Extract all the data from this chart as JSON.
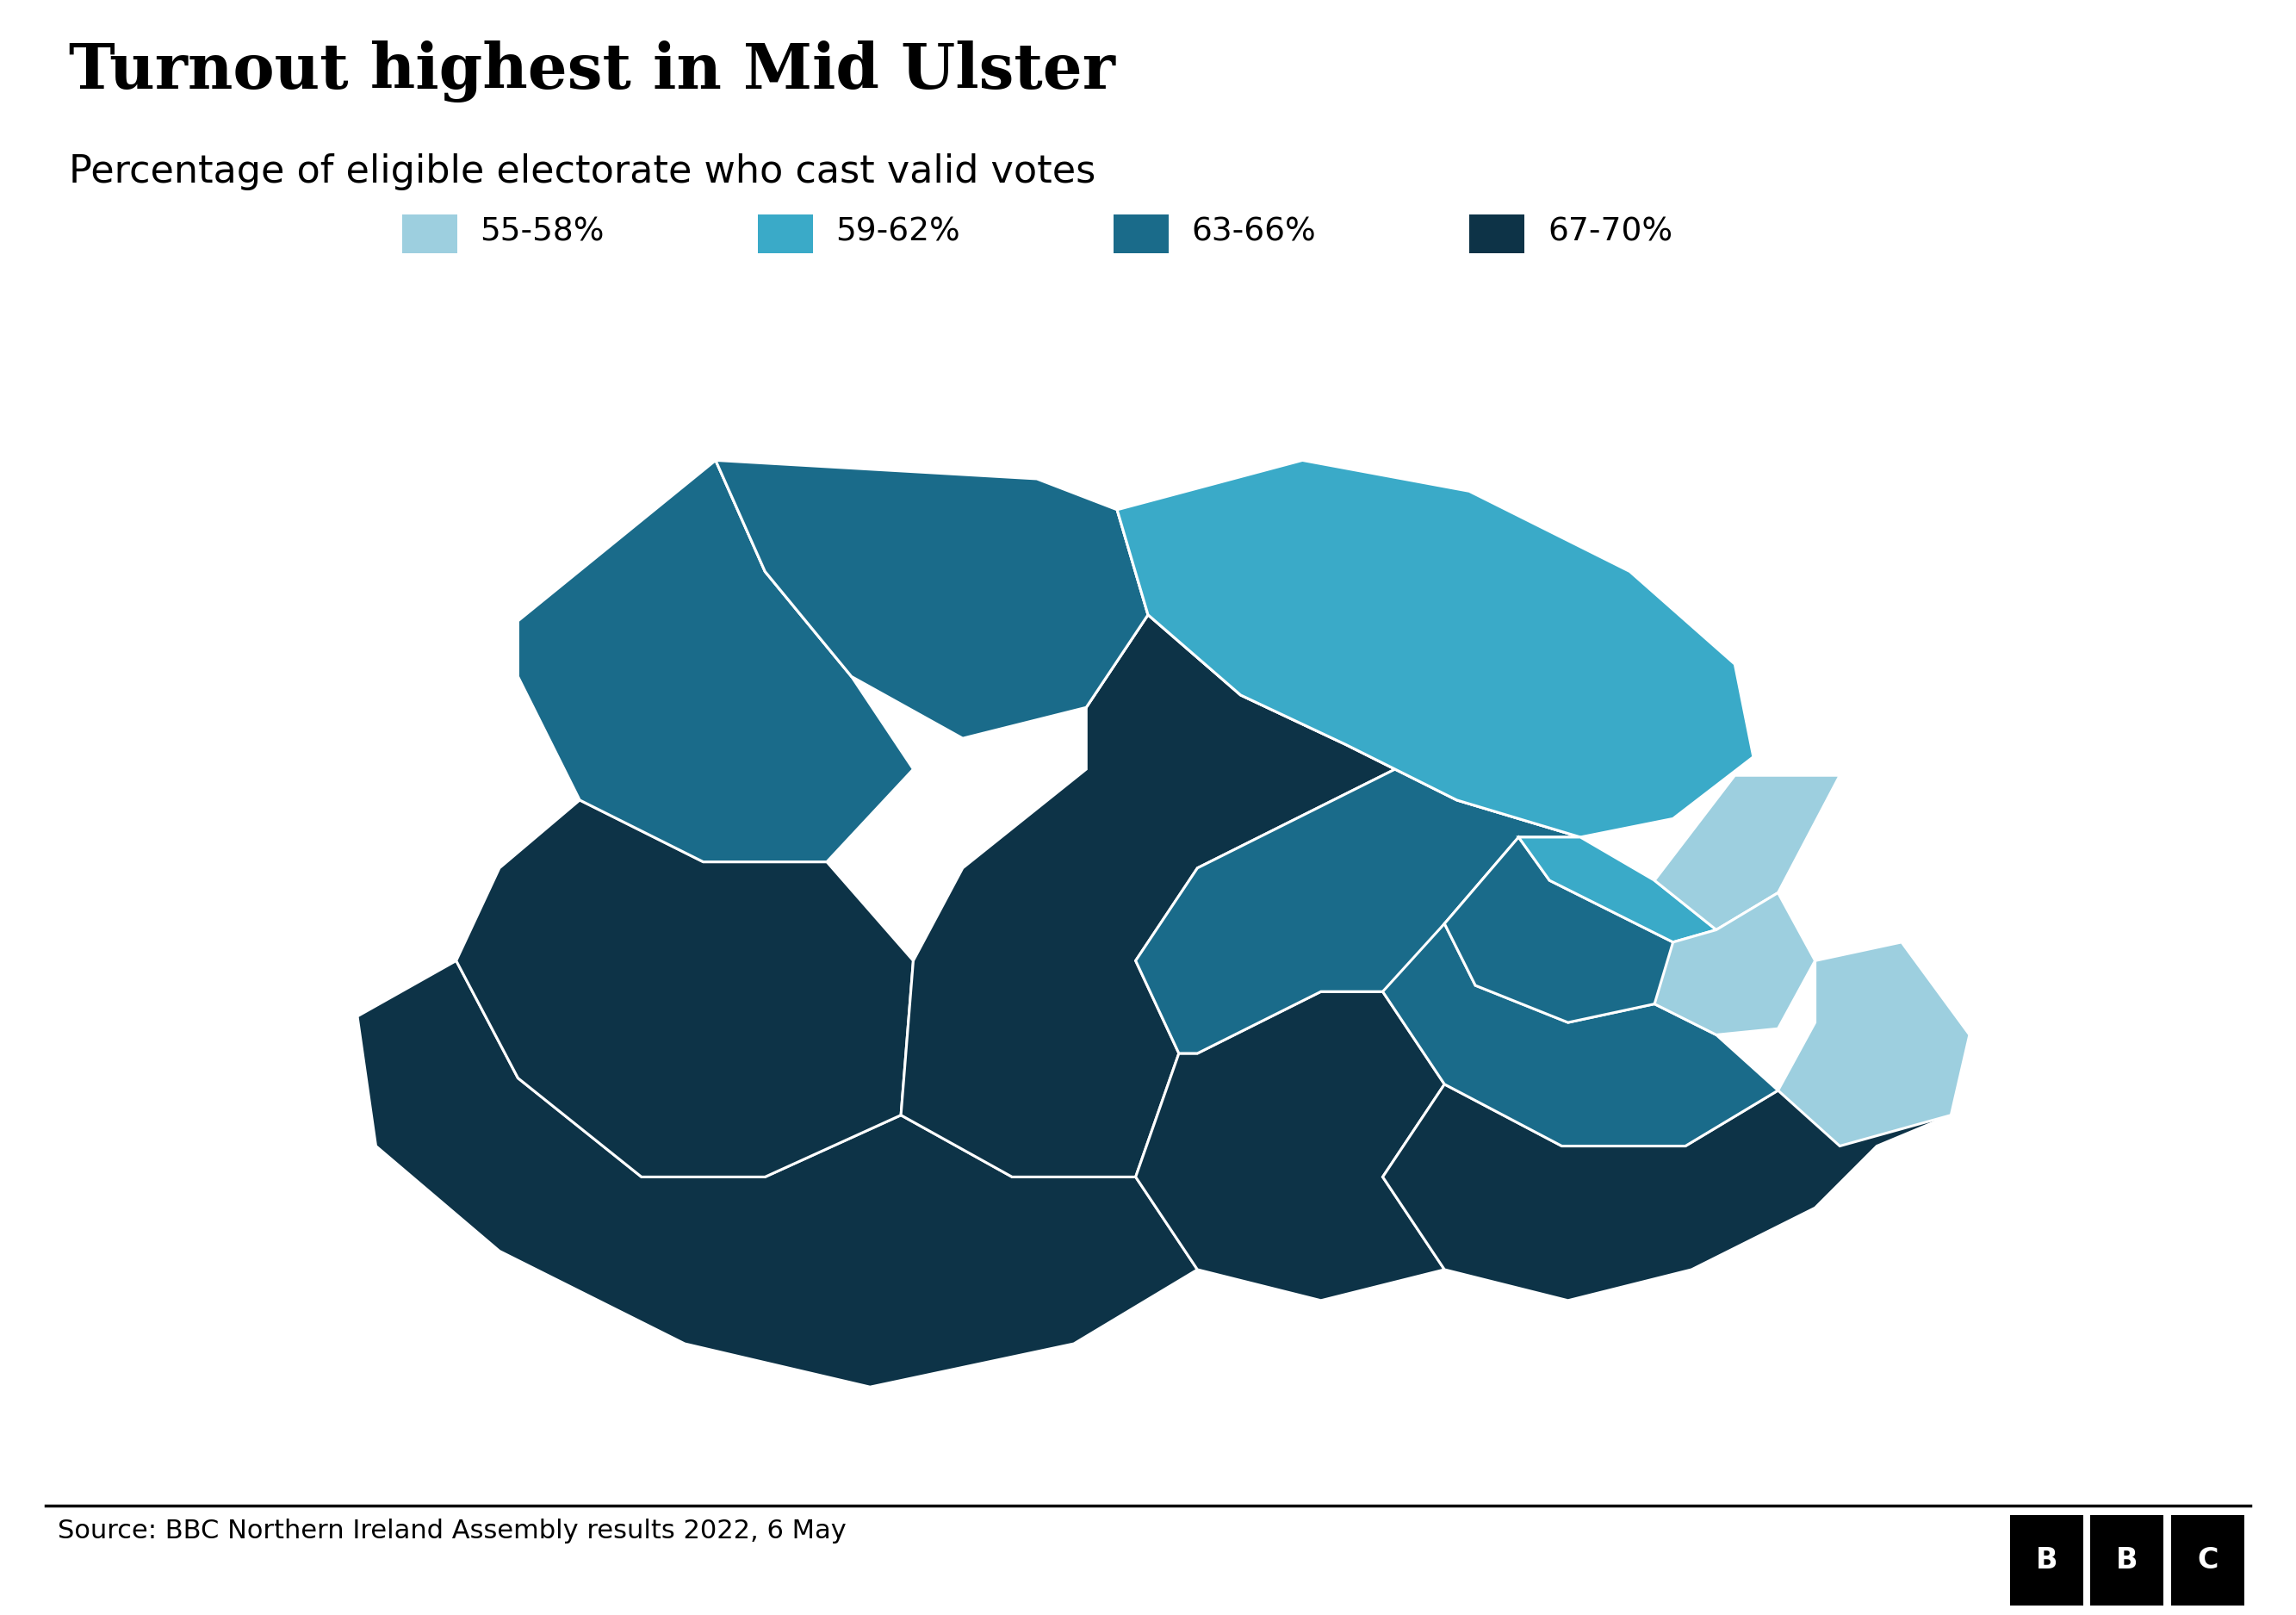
{
  "title": "Turnout highest in Mid Ulster",
  "subtitle": "Percentage of eligible electorate who cast valid votes",
  "source": "Source: BBC Northern Ireland Assembly results 2022, 6 May",
  "legend_items": [
    {
      "label": "55-58%",
      "color": "#9dcfdf"
    },
    {
      "label": "59-62%",
      "color": "#3aaac8"
    },
    {
      "label": "63-66%",
      "color": "#1a6b8a"
    },
    {
      "label": "67-70%",
      "color": "#0d3347"
    }
  ],
  "color_map": {
    "North Antrim": "#3aaac8",
    "East Antrim": "#3aaac8",
    "East Londonderry": "#1a6b8a",
    "Foyle": "#1a6b8a",
    "North Belfast": "#3aaac8",
    "East Belfast": "#9dcfdf",
    "West Belfast": "#1a6b8a",
    "South Belfast": "#9dcfdf",
    "Lagan Valley": "#1a6b8a",
    "Strangford": "#9dcfdf",
    "North Down": "#3aaac8",
    "South Down": "#0d3347",
    "Newry and Armagh": "#0d3347",
    "Upper Bann": "#1a6b8a",
    "Mid Ulster": "#0d3347",
    "West Tyrone": "#0d3347",
    "Fermanagh and South Tyrone": "#0d3347"
  },
  "background_color": "#ffffff",
  "title_fontsize": 52,
  "subtitle_fontsize": 32,
  "source_fontsize": 22,
  "legend_fontsize": 27
}
